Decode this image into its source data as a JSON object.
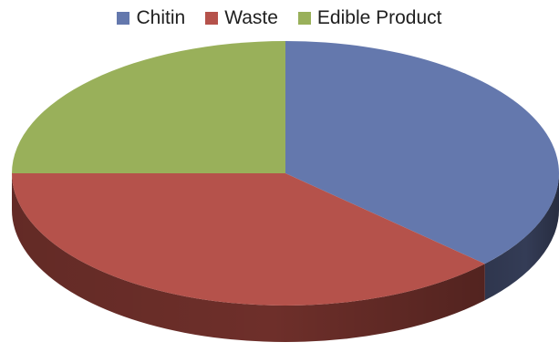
{
  "chart_data": {
    "type": "pie",
    "style": "3d",
    "legend": {
      "position": "top"
    },
    "categories": [
      "Chitin",
      "Waste",
      "Edible Product"
    ],
    "values": [
      37,
      38,
      25
    ],
    "colors": [
      "#6478AD",
      "#B5524B",
      "#99B05A"
    ],
    "side_colors": [
      "#343C56",
      "#6E2F2A",
      "#5B6B33"
    ]
  }
}
